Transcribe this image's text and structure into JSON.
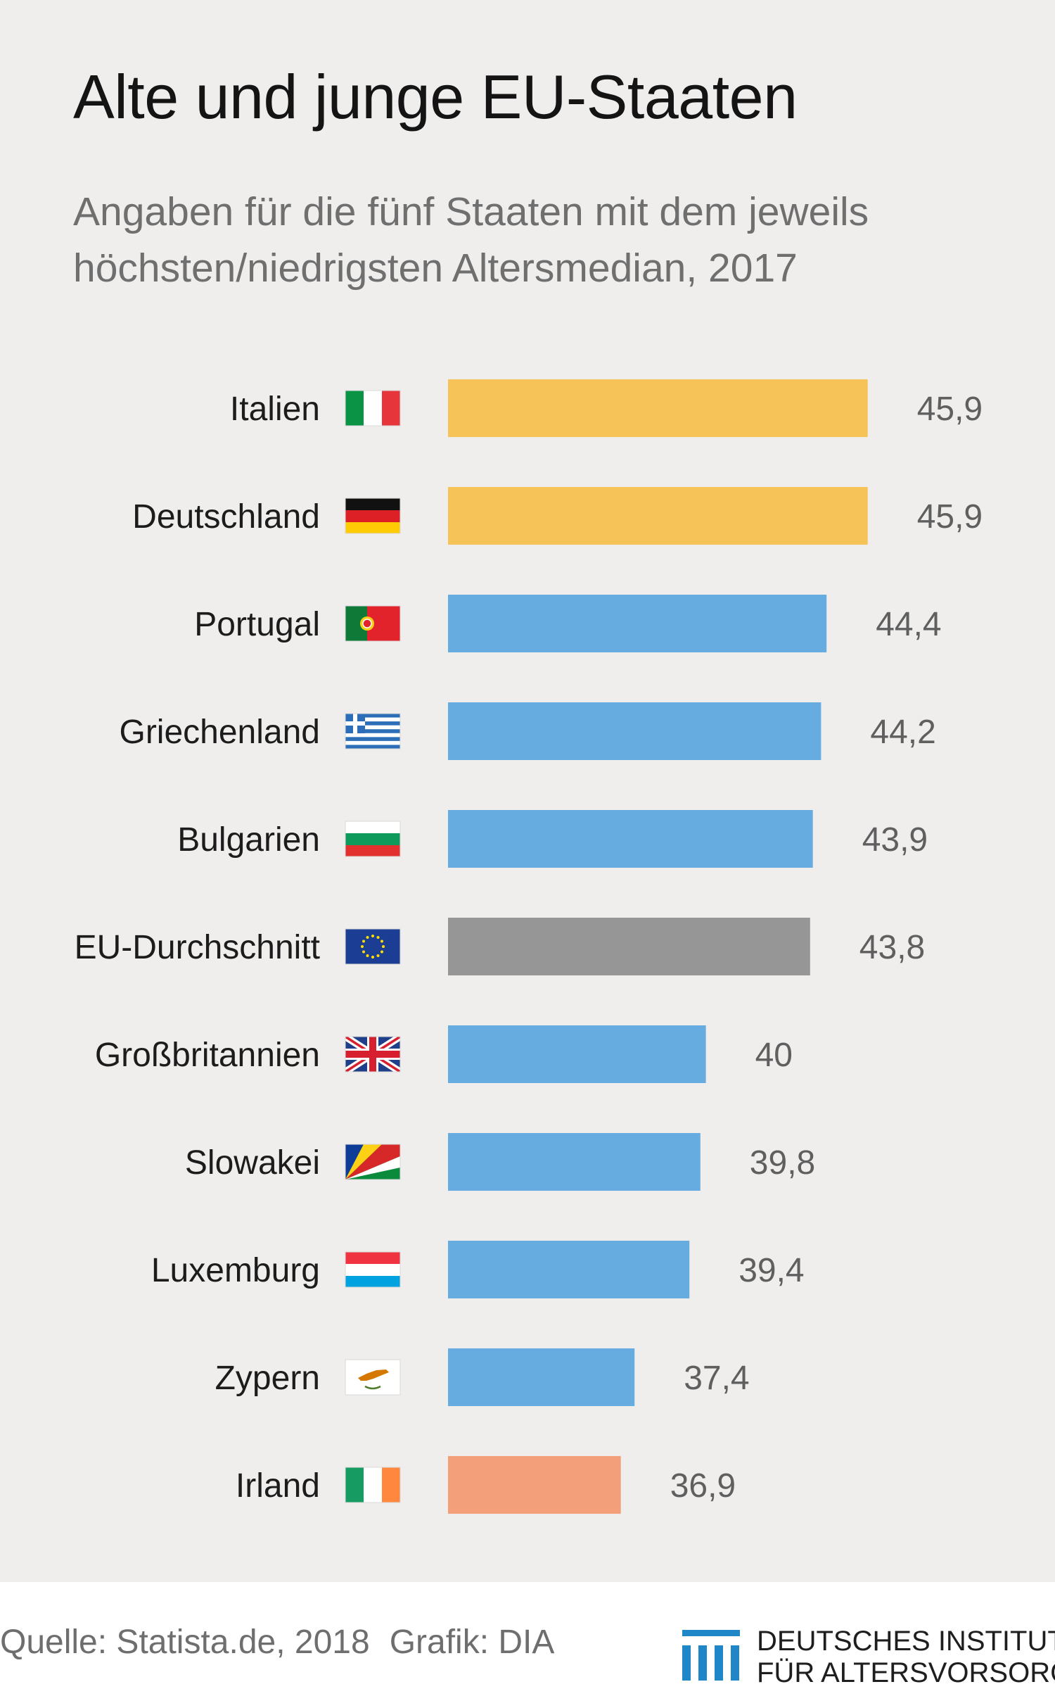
{
  "title": "Alte und junge EU-Staaten",
  "subtitle": "Angaben für die fünf Staaten mit dem jeweils höchsten/niedrigsten Altersmedian, 2017",
  "colors": {
    "highlight_old": "#f5c358",
    "bar": "#67ace1",
    "average": "#969696",
    "highlight_young": "#f3a07a",
    "label": "#1c1c1c",
    "value": "#5f5f5f"
  },
  "chart_data": {
    "type": "bar",
    "orientation": "horizontal",
    "categories": [
      "Italien",
      "Deutschland",
      "Portugal",
      "Griechenland",
      "Bulgarien",
      "EU-Durchschnitt",
      "Großbritannien",
      "Slowakei",
      "Luxemburg",
      "Zypern",
      "Irland"
    ],
    "values": [
      45.9,
      45.9,
      44.4,
      44.2,
      43.9,
      43.8,
      40,
      39.8,
      39.4,
      37.4,
      36.9
    ],
    "value_labels": [
      "45,9",
      "45,9",
      "44,4",
      "44,2",
      "43,9",
      "43,8",
      "40",
      "39,8",
      "39,4",
      "37,4",
      "36,9"
    ],
    "bar_colors": [
      "#f5c358",
      "#f5c358",
      "#67ace1",
      "#67ace1",
      "#67ace1",
      "#969696",
      "#67ace1",
      "#67ace1",
      "#67ace1",
      "#67ace1",
      "#f3a07a"
    ],
    "flag_icons": [
      "flag-italy-icon",
      "flag-germany-icon",
      "flag-portugal-icon",
      "flag-greece-icon",
      "flag-bulgaria-icon",
      "flag-eu-icon",
      "flag-uk-icon",
      "flag-slovakia-icon",
      "flag-luxembourg-icon",
      "flag-cyprus-icon",
      "flag-ireland-icon"
    ],
    "title": "Alte und junge EU-Staaten",
    "xlabel": "",
    "ylabel": "",
    "grid": false,
    "legend": "none"
  },
  "footer": {
    "source": "Quelle: Statista.de, 2018",
    "graphic": "Grafik: DIA",
    "logo_line1": "DEUTSCHES INSTITUT",
    "logo_line2": "FÜR ALTERSVORSORGE"
  }
}
